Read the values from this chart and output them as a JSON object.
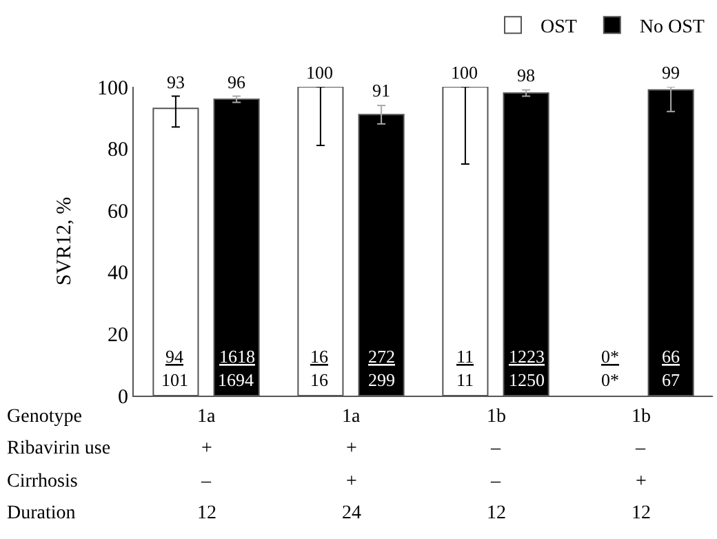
{
  "chart_data": {
    "type": "bar",
    "ylabel": "SVR12, %",
    "categories": [
      null,
      null,
      null,
      null
    ],
    "series": [
      {
        "name": "OST",
        "color": "#ffffff",
        "values": [
          93,
          100,
          100,
          null
        ],
        "errors": [
          [
            87,
            97
          ],
          [
            81,
            100
          ],
          [
            75,
            100
          ],
          null
        ]
      },
      {
        "name": "No OST",
        "color": "#000000",
        "values": [
          96,
          91,
          98,
          99
        ],
        "errors": [
          [
            95,
            97
          ],
          [
            88,
            94
          ],
          [
            97,
            99
          ],
          [
            92,
            100
          ]
        ]
      }
    ],
    "data_labels": true,
    "ylim": [
      0,
      100
    ],
    "yticks": [
      0,
      20,
      40,
      60,
      80,
      100
    ],
    "legend": "top right",
    "annotations": [
      "94",
      "101",
      "1618",
      "1694",
      "16",
      "16",
      "272",
      "299",
      "11",
      "11",
      "1223",
      "1250",
      "0*",
      "0*",
      "66",
      "67",
      "Genotype",
      "1a",
      "1a",
      "1b",
      "1b",
      "Ribavirin use",
      "+",
      "+",
      "–",
      "–",
      "Cirrhosis",
      "–",
      "+",
      "–",
      "+",
      "Duration",
      "12",
      "24",
      "12",
      "12"
    ]
  }
}
